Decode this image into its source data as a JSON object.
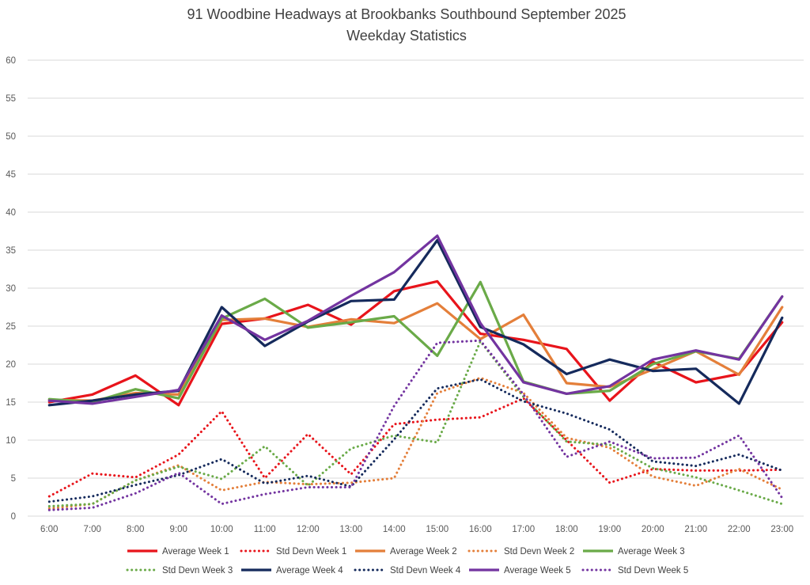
{
  "chart_data": {
    "type": "line",
    "title": "91 Woodbine Headways at Brookbanks Southbound September 2025",
    "subtitle": "Weekday Statistics",
    "xlabel": "",
    "ylabel": "",
    "categories": [
      "6:00",
      "7:00",
      "8:00",
      "9:00",
      "10:00",
      "11:00",
      "12:00",
      "13:00",
      "14:00",
      "15:00",
      "16:00",
      "17:00",
      "18:00",
      "19:00",
      "20:00",
      "21:00",
      "22:00",
      "23:00"
    ],
    "ylim": [
      0,
      60
    ],
    "yticks": [
      "0",
      "5",
      "10",
      "15",
      "20",
      "25",
      "30",
      "35",
      "40",
      "45",
      "50",
      "55",
      "60"
    ],
    "grid": true,
    "legend_position": "bottom",
    "series": [
      {
        "name": "Average Week 1",
        "color": "#e8141b",
        "style": "solid",
        "values": [
          15.0,
          16.0,
          18.5,
          14.6,
          25.3,
          26.0,
          27.8,
          25.2,
          29.6,
          30.9,
          24.0,
          23.2,
          22.0,
          15.2,
          20.3,
          17.6,
          18.7,
          25.5
        ]
      },
      {
        "name": "Std Devn Week 1",
        "color": "#e8141b",
        "style": "dotted",
        "values": [
          2.6,
          5.6,
          5.1,
          8.1,
          13.8,
          5.0,
          10.8,
          5.5,
          12.1,
          12.7,
          13.0,
          15.5,
          10.0,
          4.4,
          6.2,
          6.0,
          6.0,
          6.1
        ]
      },
      {
        "name": "Average Week 2",
        "color": "#e47f3a",
        "style": "solid",
        "values": [
          15.3,
          15.2,
          16.2,
          16.0,
          25.8,
          26.0,
          24.9,
          25.9,
          25.4,
          28.0,
          23.3,
          26.5,
          17.5,
          17.0,
          19.3,
          21.7,
          18.6,
          27.5
        ]
      },
      {
        "name": "Std Devn Week 2",
        "color": "#e47f3a",
        "style": "dotted",
        "values": [
          1.0,
          1.6,
          4.7,
          6.7,
          3.4,
          4.5,
          4.2,
          4.4,
          5.0,
          16.2,
          18.2,
          16.2,
          10.3,
          9.0,
          5.2,
          4.0,
          6.2,
          3.5
        ]
      },
      {
        "name": "Average Week 3",
        "color": "#6aaa48",
        "style": "solid",
        "values": [
          15.4,
          15.0,
          16.7,
          15.5,
          26.0,
          28.6,
          24.8,
          25.5,
          26.3,
          21.1,
          30.8,
          17.7,
          16.1,
          16.5,
          20.0,
          21.7,
          20.7,
          28.9
        ]
      },
      {
        "name": "Std Devn Week 3",
        "color": "#6aaa48",
        "style": "dotted",
        "values": [
          1.3,
          1.6,
          4.7,
          6.5,
          4.9,
          9.2,
          4.0,
          8.9,
          10.6,
          9.7,
          23.0,
          15.7,
          9.8,
          9.4,
          6.3,
          5.1,
          3.4,
          1.6
        ]
      },
      {
        "name": "Average Week 4",
        "color": "#152a5c",
        "style": "solid",
        "values": [
          14.6,
          15.2,
          16.0,
          16.5,
          27.5,
          22.4,
          25.6,
          28.3,
          28.5,
          36.3,
          24.9,
          22.6,
          18.7,
          20.6,
          19.1,
          19.4,
          14.8,
          26.1
        ]
      },
      {
        "name": "Std Devn Week 4",
        "color": "#152a5c",
        "style": "dotted",
        "values": [
          1.9,
          2.6,
          4.1,
          5.4,
          7.5,
          4.3,
          5.3,
          3.9,
          10.1,
          16.8,
          18.0,
          15.1,
          13.5,
          11.4,
          7.2,
          6.6,
          8.1,
          6.0
        ]
      },
      {
        "name": "Average Week 5",
        "color": "#7334a0",
        "style": "solid",
        "values": [
          15.2,
          14.8,
          15.7,
          16.6,
          26.4,
          23.2,
          25.7,
          29.0,
          32.1,
          36.9,
          25.4,
          17.6,
          16.1,
          17.1,
          20.6,
          21.8,
          20.6,
          28.9
        ]
      },
      {
        "name": "Std Devn Week 5",
        "color": "#7334a0",
        "style": "dotted",
        "values": [
          0.8,
          1.1,
          3.0,
          5.7,
          1.6,
          2.9,
          3.8,
          3.8,
          14.5,
          22.8,
          23.1,
          16.0,
          7.8,
          9.8,
          7.6,
          7.7,
          10.6,
          2.4
        ]
      }
    ]
  }
}
